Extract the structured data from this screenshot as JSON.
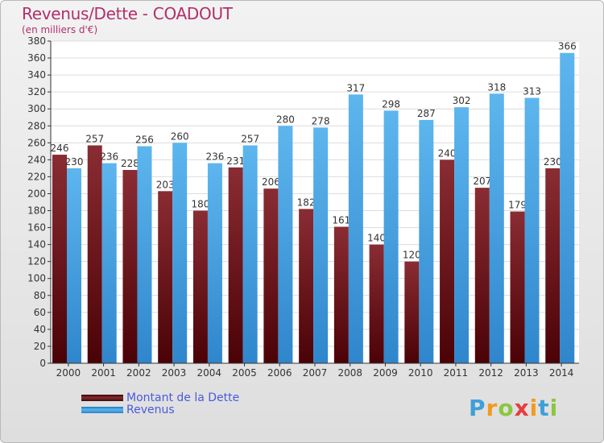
{
  "title": "Revenus/Dette - COADOUT",
  "subtitle": "(en milliers d'€)",
  "colors": {
    "debt": "#7a1f24",
    "revenue": "#3f9ee0",
    "title": "#b0306a"
  },
  "chart_data": {
    "type": "bar",
    "categories": [
      "2000",
      "2001",
      "2002",
      "2003",
      "2004",
      "2005",
      "2006",
      "2007",
      "2008",
      "2009",
      "2010",
      "2011",
      "2012",
      "2013",
      "2014"
    ],
    "series": [
      {
        "name": "Montant de la Dette",
        "color": "#7a1f24",
        "values": [
          246,
          257,
          228,
          203,
          180,
          231,
          206,
          182,
          161,
          140,
          120,
          240,
          207,
          179,
          230
        ]
      },
      {
        "name": "Revenus",
        "color": "#3f9ee0",
        "values": [
          230,
          236,
          256,
          260,
          236,
          257,
          280,
          278,
          317,
          298,
          287,
          302,
          318,
          313,
          366
        ]
      }
    ],
    "ylim": [
      0,
      380
    ],
    "ytick_step": 20,
    "grid": true,
    "legend_position": "bottom-left"
  },
  "legend": [
    {
      "label": "Montant de la Dette",
      "color": "#7a1f24"
    },
    {
      "label": "Revenus",
      "color": "#3f9ee0"
    }
  ],
  "logo": {
    "text": "Proxiti",
    "letters": [
      "P",
      "r",
      "o",
      "x",
      "i",
      "t",
      "i"
    ],
    "letter_colors": [
      "#3fa0d8",
      "#f39a1e",
      "#8cc63f",
      "#e63d3d",
      "#f39a1e",
      "#3fa0d8",
      "#8cc63f"
    ]
  }
}
